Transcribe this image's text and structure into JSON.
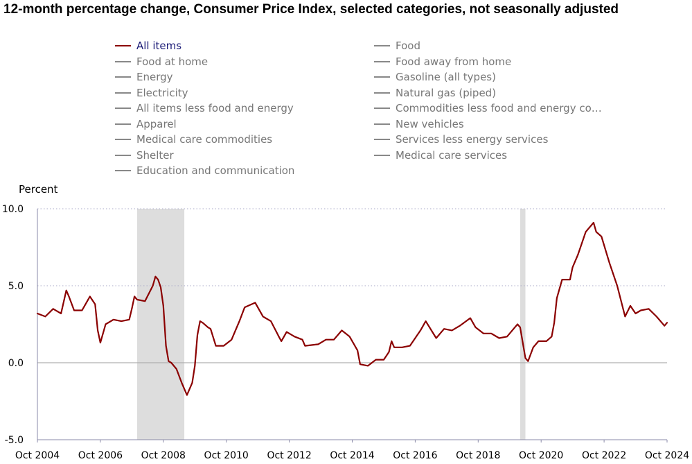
{
  "title": "12-month percentage change, Consumer Price Index, selected categories, not seasonally adjusted",
  "legend": [
    {
      "label": "All items",
      "color": "#8b0000",
      "active": true
    },
    {
      "label": "Food",
      "color": "#888888",
      "active": false
    },
    {
      "label": "Food at home",
      "color": "#888888",
      "active": false
    },
    {
      "label": "Food away from home",
      "color": "#888888",
      "active": false
    },
    {
      "label": "Energy",
      "color": "#888888",
      "active": false
    },
    {
      "label": "Gasoline (all types)",
      "color": "#888888",
      "active": false
    },
    {
      "label": "Electricity",
      "color": "#888888",
      "active": false
    },
    {
      "label": "Natural gas (piped)",
      "color": "#888888",
      "active": false
    },
    {
      "label": "All items less food and energy",
      "color": "#888888",
      "active": false
    },
    {
      "label": "Commodities less food and energy com…",
      "color": "#888888",
      "active": false
    },
    {
      "label": "Apparel",
      "color": "#888888",
      "active": false
    },
    {
      "label": "New vehicles",
      "color": "#888888",
      "active": false
    },
    {
      "label": "Medical care commodities",
      "color": "#888888",
      "active": false
    },
    {
      "label": "Services less energy services",
      "color": "#888888",
      "active": false
    },
    {
      "label": "Shelter",
      "color": "#888888",
      "active": false
    },
    {
      "label": "Medical care services",
      "color": "#888888",
      "active": false
    },
    {
      "label": "Education and communication",
      "color": "#888888",
      "active": false
    }
  ],
  "chart_data": {
    "type": "line",
    "ylabel": "Percent",
    "ylim": [
      -5,
      10
    ],
    "yticks": [
      {
        "value": -5,
        "label": "-5.0"
      },
      {
        "value": 0,
        "label": "0.0"
      },
      {
        "value": 5,
        "label": "5.0"
      },
      {
        "value": 10,
        "label": "10.0"
      }
    ],
    "xlim": [
      "2004-10",
      "2024-10"
    ],
    "xticks": [
      {
        "date": "2004-10",
        "label": "Oct 2004"
      },
      {
        "date": "2006-10",
        "label": "Oct 2006"
      },
      {
        "date": "2008-10",
        "label": "Oct 2008"
      },
      {
        "date": "2010-10",
        "label": "Oct 2010"
      },
      {
        "date": "2012-10",
        "label": "Oct 2012"
      },
      {
        "date": "2014-10",
        "label": "Oct 2014"
      },
      {
        "date": "2016-10",
        "label": "Oct 2016"
      },
      {
        "date": "2018-10",
        "label": "Oct 2018"
      },
      {
        "date": "2020-10",
        "label": "Oct 2020"
      },
      {
        "date": "2022-10",
        "label": "Oct 2022"
      },
      {
        "date": "2024-10",
        "label": "Oct 2024"
      }
    ],
    "recessions": [
      {
        "start": "2007-12",
        "end": "2009-06"
      },
      {
        "start": "2020-02",
        "end": "2020-04"
      }
    ],
    "line_color": "#8b0000",
    "recession_color": "#dddddd",
    "grid": true,
    "series": [
      {
        "name": "All items",
        "points": [
          [
            "2004-10",
            3.2
          ],
          [
            "2005-01",
            3.0
          ],
          [
            "2005-04",
            3.5
          ],
          [
            "2005-07",
            3.2
          ],
          [
            "2005-09",
            4.7
          ],
          [
            "2005-10",
            4.3
          ],
          [
            "2005-12",
            3.4
          ],
          [
            "2006-03",
            3.4
          ],
          [
            "2006-06",
            4.3
          ],
          [
            "2006-08",
            3.8
          ],
          [
            "2006-09",
            2.1
          ],
          [
            "2006-10",
            1.3
          ],
          [
            "2006-12",
            2.5
          ],
          [
            "2007-03",
            2.8
          ],
          [
            "2007-06",
            2.7
          ],
          [
            "2007-09",
            2.8
          ],
          [
            "2007-10",
            3.5
          ],
          [
            "2007-11",
            4.3
          ],
          [
            "2007-12",
            4.1
          ],
          [
            "2008-03",
            4.0
          ],
          [
            "2008-06",
            5.0
          ],
          [
            "2008-07",
            5.6
          ],
          [
            "2008-08",
            5.4
          ],
          [
            "2008-09",
            4.9
          ],
          [
            "2008-10",
            3.7
          ],
          [
            "2008-11",
            1.1
          ],
          [
            "2008-12",
            0.1
          ],
          [
            "2009-01",
            0.0
          ],
          [
            "2009-03",
            -0.4
          ],
          [
            "2009-05",
            -1.3
          ],
          [
            "2009-07",
            -2.1
          ],
          [
            "2009-09",
            -1.3
          ],
          [
            "2009-10",
            -0.2
          ],
          [
            "2009-11",
            1.8
          ],
          [
            "2009-12",
            2.7
          ],
          [
            "2010-01",
            2.6
          ],
          [
            "2010-03",
            2.3
          ],
          [
            "2010-04",
            2.2
          ],
          [
            "2010-06",
            1.1
          ],
          [
            "2010-09",
            1.1
          ],
          [
            "2010-12",
            1.5
          ],
          [
            "2011-03",
            2.7
          ],
          [
            "2011-05",
            3.6
          ],
          [
            "2011-09",
            3.9
          ],
          [
            "2011-12",
            3.0
          ],
          [
            "2012-03",
            2.7
          ],
          [
            "2012-06",
            1.7
          ],
          [
            "2012-07",
            1.4
          ],
          [
            "2012-09",
            2.0
          ],
          [
            "2012-12",
            1.7
          ],
          [
            "2013-03",
            1.5
          ],
          [
            "2013-04",
            1.1
          ],
          [
            "2013-09",
            1.2
          ],
          [
            "2013-12",
            1.5
          ],
          [
            "2014-03",
            1.5
          ],
          [
            "2014-06",
            2.1
          ],
          [
            "2014-09",
            1.7
          ],
          [
            "2014-12",
            0.8
          ],
          [
            "2015-01",
            -0.1
          ],
          [
            "2015-04",
            -0.2
          ],
          [
            "2015-07",
            0.2
          ],
          [
            "2015-10",
            0.2
          ],
          [
            "2015-12",
            0.7
          ],
          [
            "2016-01",
            1.4
          ],
          [
            "2016-02",
            1.0
          ],
          [
            "2016-05",
            1.0
          ],
          [
            "2016-08",
            1.1
          ],
          [
            "2016-12",
            2.1
          ],
          [
            "2017-02",
            2.7
          ],
          [
            "2017-06",
            1.6
          ],
          [
            "2017-09",
            2.2
          ],
          [
            "2017-12",
            2.1
          ],
          [
            "2018-03",
            2.4
          ],
          [
            "2018-07",
            2.9
          ],
          [
            "2018-09",
            2.3
          ],
          [
            "2018-12",
            1.9
          ],
          [
            "2019-03",
            1.9
          ],
          [
            "2019-06",
            1.6
          ],
          [
            "2019-09",
            1.7
          ],
          [
            "2019-12",
            2.3
          ],
          [
            "2020-01",
            2.5
          ],
          [
            "2020-02",
            2.3
          ],
          [
            "2020-04",
            0.3
          ],
          [
            "2020-05",
            0.1
          ],
          [
            "2020-07",
            1.0
          ],
          [
            "2020-09",
            1.4
          ],
          [
            "2020-12",
            1.4
          ],
          [
            "2021-02",
            1.7
          ],
          [
            "2021-03",
            2.6
          ],
          [
            "2021-04",
            4.2
          ],
          [
            "2021-06",
            5.4
          ],
          [
            "2021-09",
            5.4
          ],
          [
            "2021-10",
            6.2
          ],
          [
            "2021-12",
            7.0
          ],
          [
            "2022-03",
            8.5
          ],
          [
            "2022-06",
            9.1
          ],
          [
            "2022-07",
            8.5
          ],
          [
            "2022-09",
            8.2
          ],
          [
            "2022-12",
            6.5
          ],
          [
            "2023-03",
            5.0
          ],
          [
            "2023-06",
            3.0
          ],
          [
            "2023-08",
            3.7
          ],
          [
            "2023-10",
            3.2
          ],
          [
            "2023-12",
            3.4
          ],
          [
            "2024-03",
            3.5
          ],
          [
            "2024-06",
            3.0
          ],
          [
            "2024-09",
            2.4
          ],
          [
            "2024-10",
            2.6
          ]
        ]
      }
    ]
  }
}
